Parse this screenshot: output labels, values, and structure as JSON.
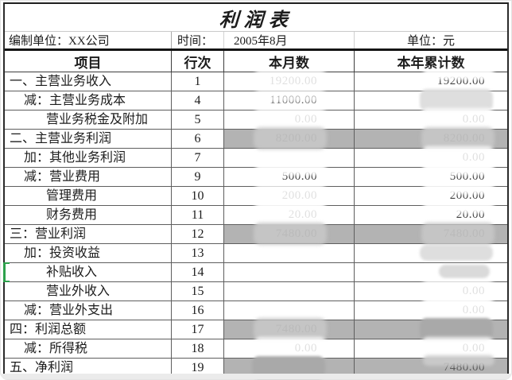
{
  "title": "利润表",
  "info": {
    "prepared_by": "编制单位：XX公司",
    "time_label": "时间：",
    "time_value": "2005年8月",
    "unit_label": "单位：元"
  },
  "table": {
    "headers": {
      "item": "项目",
      "line": "行次",
      "month": "本月数",
      "ytd": "本年累计数"
    },
    "rows": [
      {
        "label": "一、主营业务收入",
        "indent": 0,
        "line": "1",
        "month": "19200.00",
        "ytd": "19200.00",
        "gray": false,
        "month_smudge": "heavy",
        "ytd_smudge": "top",
        "marker": false
      },
      {
        "label": "减：主营业务成本",
        "indent": 1,
        "line": "4",
        "month": "11000.00",
        "ytd": "11000.00",
        "gray": false,
        "month_smudge": "light",
        "ytd_smudge": "blob",
        "marker": false
      },
      {
        "label": "营业务税金及附加",
        "indent": 2,
        "line": "5",
        "month": "0.00",
        "ytd": "0.00",
        "gray": false,
        "month_smudge": "heavy",
        "ytd_smudge": "heavy",
        "marker": false
      },
      {
        "label": "二、主营业务利润",
        "indent": 0,
        "line": "6",
        "month": "8200.00",
        "ytd": "8200.00",
        "gray": true,
        "month_smudge": "heavy",
        "ytd_smudge": "heavy",
        "marker": false
      },
      {
        "label": "加：其他业务利润",
        "indent": 1,
        "line": "7",
        "month": "",
        "ytd": "0.00",
        "gray": false,
        "month_smudge": "none",
        "ytd_smudge": "heavy",
        "marker": false
      },
      {
        "label": "减：营业费用",
        "indent": 1,
        "line": "9",
        "month": "500.00",
        "ytd": "500.00",
        "gray": false,
        "month_smudge": "top",
        "ytd_smudge": "top",
        "marker": false
      },
      {
        "label": "管理费用",
        "indent": 2,
        "line": "10",
        "month": "200.00",
        "ytd": "200.00",
        "gray": false,
        "month_smudge": "heavy",
        "ytd_smudge": "top",
        "marker": false
      },
      {
        "label": "财务费用",
        "indent": 2,
        "line": "11",
        "month": "20.00",
        "ytd": "20.00",
        "gray": false,
        "month_smudge": "heavy",
        "ytd_smudge": "top",
        "marker": false
      },
      {
        "label": "三：营业利润",
        "indent": 0,
        "line": "12",
        "month": "7480.00",
        "ytd": "7480.00",
        "gray": true,
        "month_smudge": "heavy",
        "ytd_smudge": "heavy",
        "marker": false
      },
      {
        "label": "加：投资收益",
        "indent": 1,
        "line": "13",
        "month": "",
        "ytd": "",
        "gray": false,
        "month_smudge": "none",
        "ytd_smudge": "blob",
        "marker": false
      },
      {
        "label": "补贴收入",
        "indent": 2,
        "line": "14",
        "month": "",
        "ytd": "",
        "gray": false,
        "month_smudge": "none",
        "ytd_smudge": "blob-sm",
        "marker": true
      },
      {
        "label": "营业外收入",
        "indent": 2,
        "line": "15",
        "month": "",
        "ytd": "0.00",
        "gray": false,
        "month_smudge": "none",
        "ytd_smudge": "heavy",
        "marker": false
      },
      {
        "label": "减：营业外支出",
        "indent": 1,
        "line": "16",
        "month": "",
        "ytd": "0.00",
        "gray": false,
        "month_smudge": "none",
        "ytd_smudge": "heavy",
        "marker": false
      },
      {
        "label": "四：利润总额",
        "indent": 0,
        "line": "17",
        "month": "7480.00",
        "ytd": "7480.00",
        "gray": true,
        "month_smudge": "heavy",
        "ytd_smudge": "blob",
        "marker": false
      },
      {
        "label": "减：所得税",
        "indent": 1,
        "line": "18",
        "month": "0.00",
        "ytd": "0.00",
        "gray": false,
        "month_smudge": "heavy",
        "ytd_smudge": "heavy",
        "marker": false
      },
      {
        "label": "五、净利润",
        "indent": 0,
        "line": "19",
        "month": "7480.00",
        "ytd": "7480.00",
        "gray": true,
        "month_smudge": "blob",
        "ytd_smudge": "top",
        "marker": false
      }
    ]
  },
  "colors": {
    "gray_row": "#b3b3b3",
    "border_dark": "#2b2b2b",
    "selection_marker_green": "#2da04c"
  }
}
